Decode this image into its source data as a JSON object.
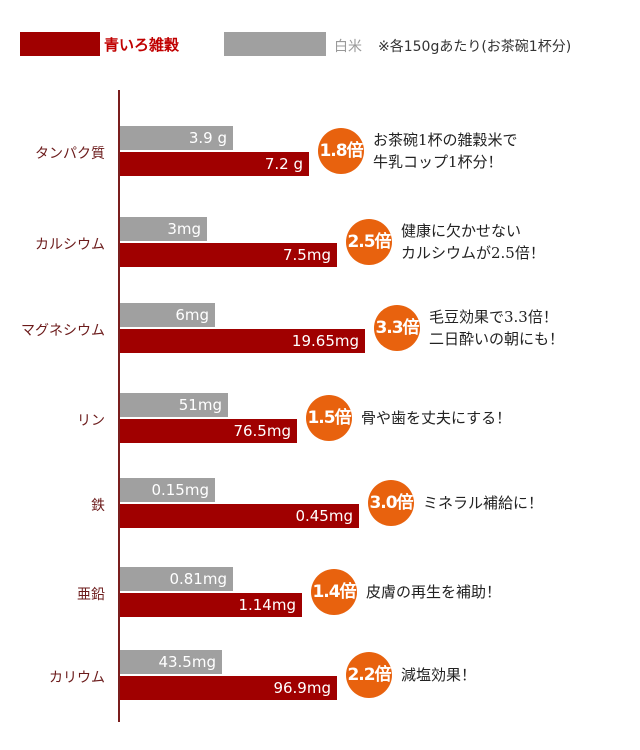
{
  "legend": {
    "red_label": "青いろ雑穀",
    "gray_label": "白米",
    "note": "※各150gあたり(お茶碗1杯分)",
    "red_color": "#a00000",
    "gray_color": "#a0a0a0"
  },
  "chart_data": {
    "type": "bar",
    "orientation": "horizontal",
    "categories": [
      "タンパク質",
      "カルシウム",
      "マグネシウム",
      "リン",
      "鉄",
      "亜鉛",
      "カリウム"
    ],
    "series": [
      {
        "name": "白米",
        "values": [
          3.9,
          3,
          6,
          51,
          0.15,
          0.81,
          43.5
        ],
        "labels": [
          "3.9 g",
          "3mg",
          "6mg",
          "51mg",
          "0.15mg",
          "0.81mg",
          "43.5mg"
        ]
      },
      {
        "name": "青いろ雑穀",
        "values": [
          7.2,
          7.5,
          19.65,
          76.5,
          0.45,
          1.14,
          96.9
        ],
        "labels": [
          "7.2 g",
          "7.5mg",
          "19.65mg",
          "76.5mg",
          "0.45mg",
          "1.14mg",
          "96.9mg"
        ]
      }
    ],
    "ratios": [
      "1.8倍",
      "2.5倍",
      "3.3倍",
      "1.5倍",
      "3.0倍",
      "1.4倍",
      "2.2倍"
    ],
    "comments": [
      "お茶碗1杯の雑穀米で\n牛乳コップ1杯分！",
      "健康に欠かせない\nカルシウムが2.5倍！",
      "毛豆効果で3.3倍！\n二日酔いの朝にも！",
      "骨や歯を丈夫にする！",
      "ミネラル補給に！",
      "皮膚の再生を補助！",
      "減塩効果！"
    ],
    "badge_color": "#e8620e"
  }
}
